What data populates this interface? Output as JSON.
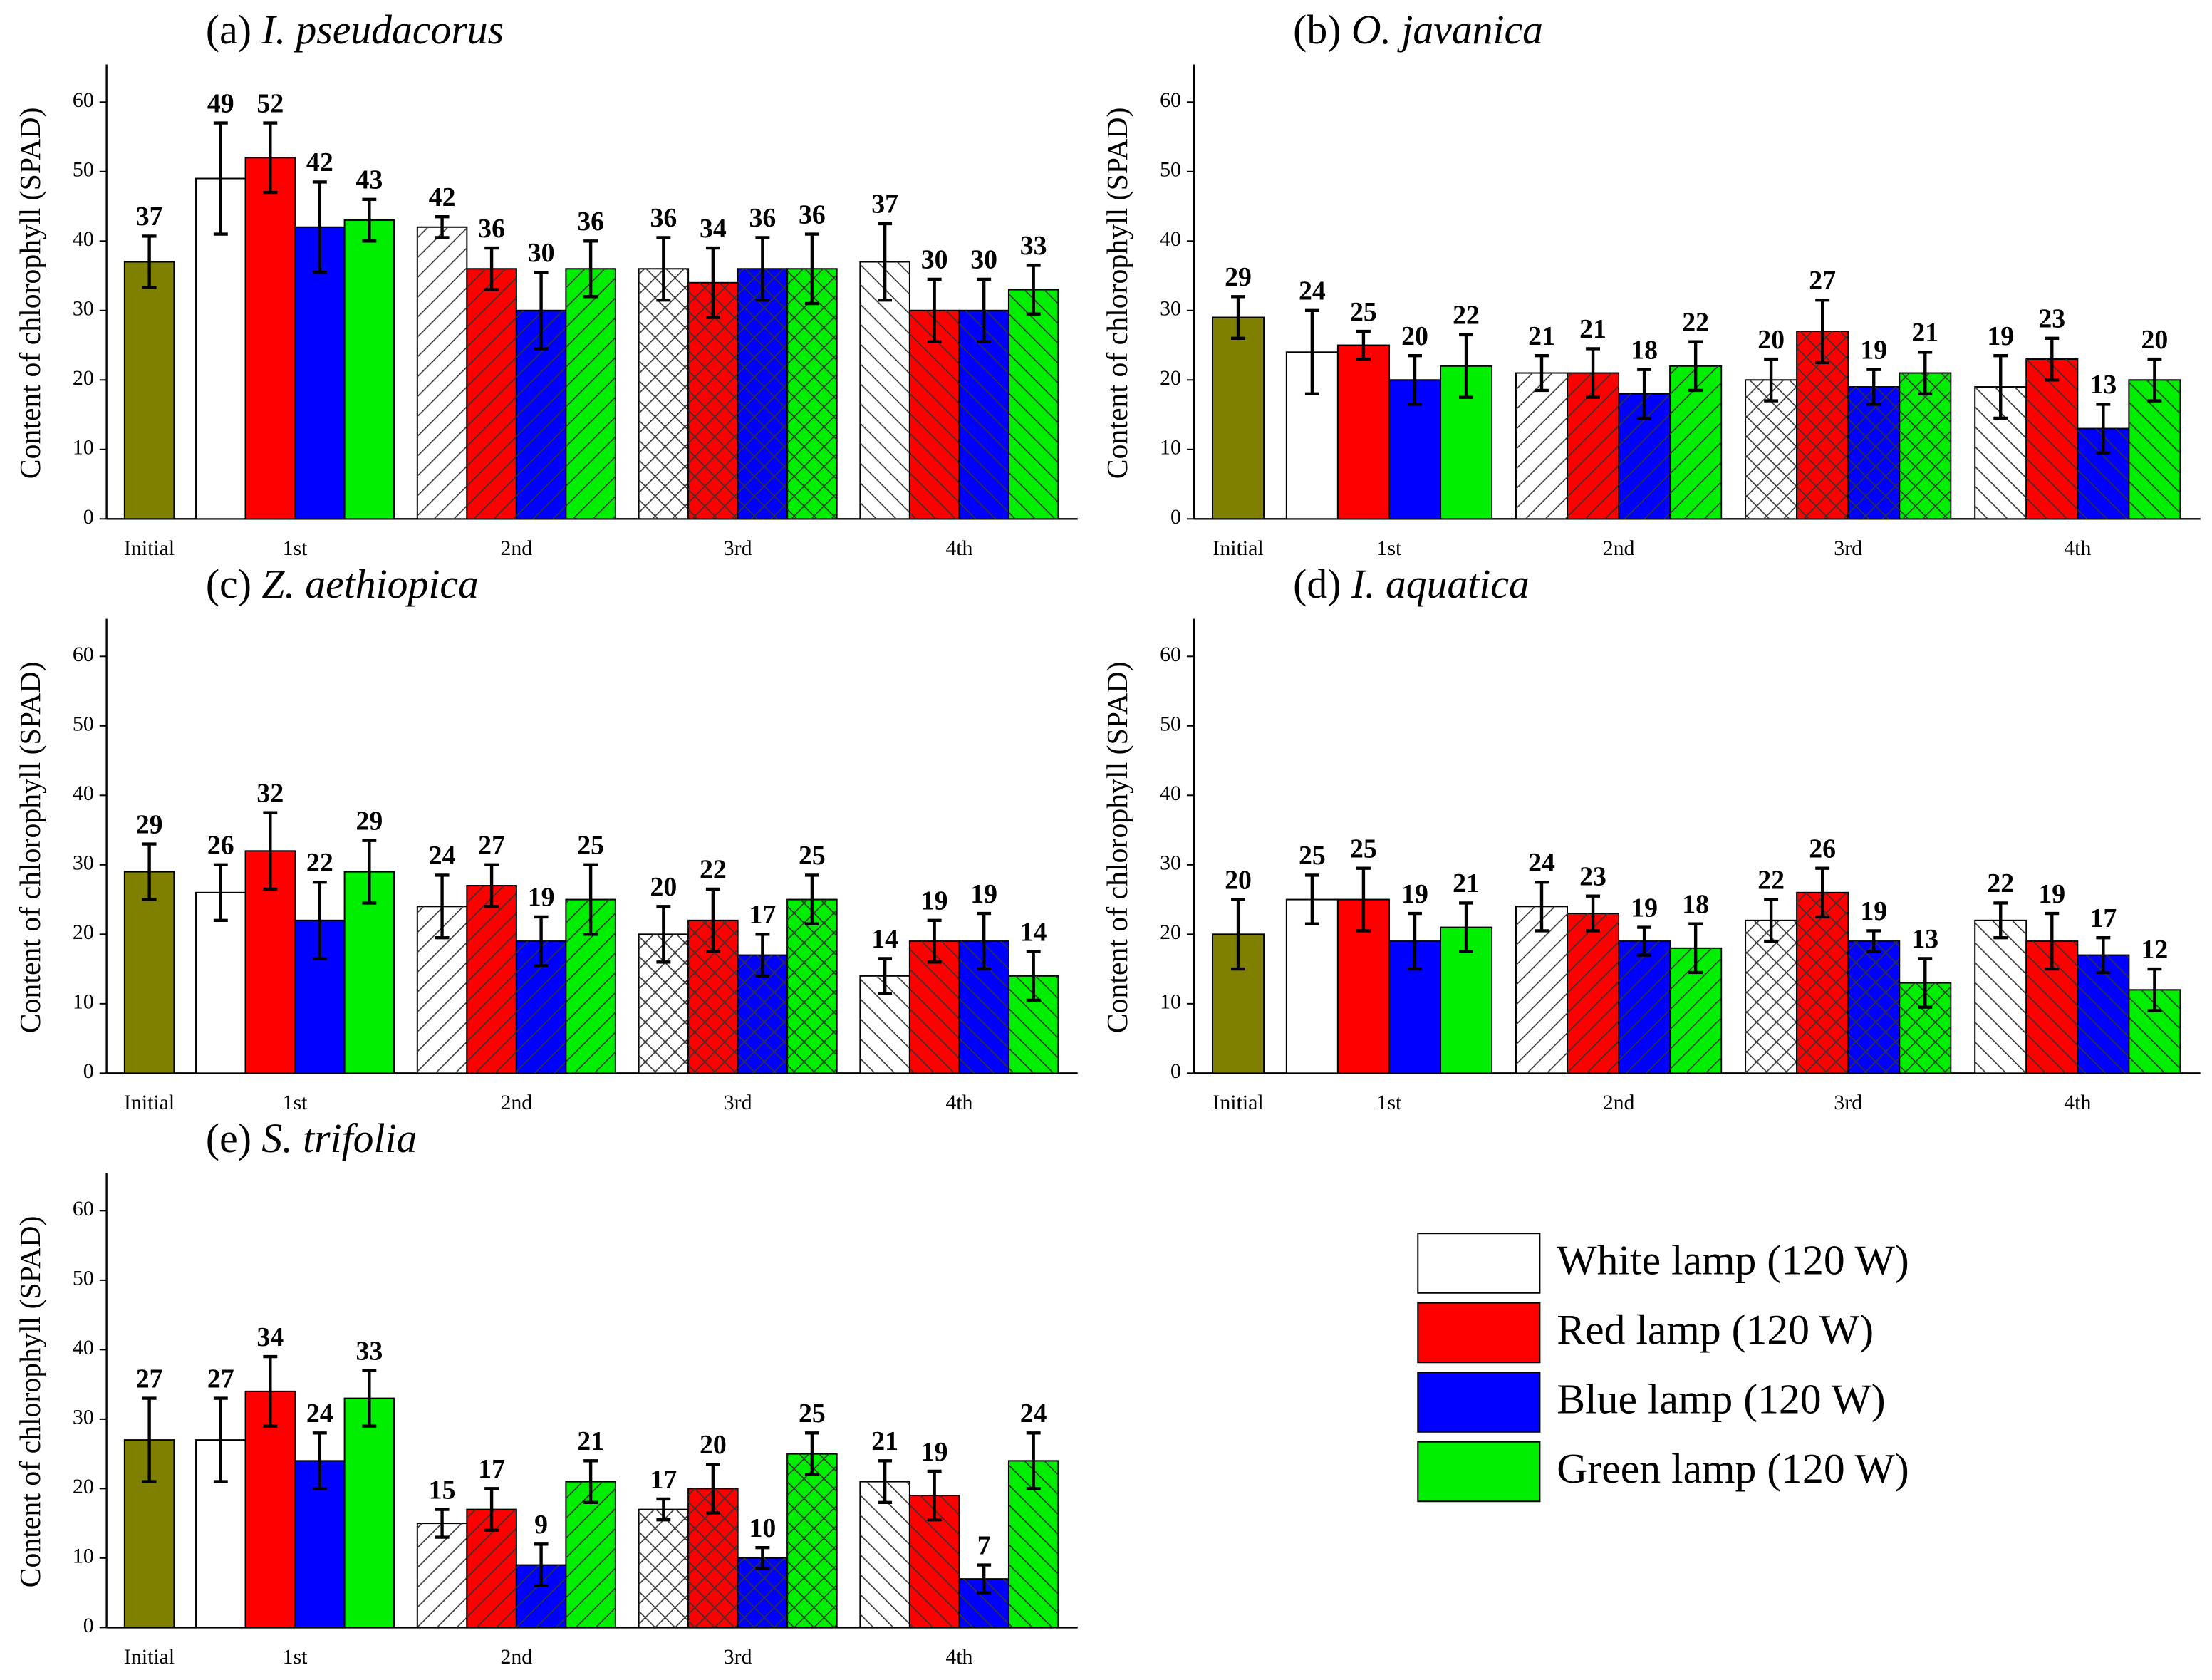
{
  "chart_data": [
    {
      "type": "bar",
      "title_prefix": "(a)",
      "title": "I. pseudacorus",
      "ylabel": "Content of chlorophyll (SPAD)",
      "categories": [
        "Initial",
        "1st",
        "2nd",
        "3rd",
        "4th"
      ],
      "hatches": [
        null,
        null,
        "/",
        "x",
        "\\"
      ],
      "ylim": [
        0,
        65
      ],
      "yticks": [
        0,
        10,
        20,
        30,
        40,
        50,
        60
      ],
      "series": [
        {
          "color": "#808000",
          "values": [
            37,
            null,
            null,
            null,
            null
          ],
          "errors": [
            3.7,
            null,
            null,
            null,
            null
          ]
        },
        {
          "color": "#ffffff",
          "values": [
            null,
            49,
            42,
            36,
            37
          ],
          "errors": [
            null,
            8,
            1.5,
            4.5,
            5.5
          ]
        },
        {
          "color": "#ff0000",
          "values": [
            null,
            52,
            36,
            34,
            30
          ],
          "errors": [
            null,
            5,
            3,
            5,
            4.5
          ]
        },
        {
          "color": "#0000ff",
          "values": [
            null,
            42,
            30,
            36,
            30
          ],
          "errors": [
            null,
            6.5,
            5.5,
            4.5,
            4.5
          ]
        },
        {
          "color": "#00ee00",
          "values": [
            null,
            43,
            36,
            36,
            33
          ],
          "errors": [
            null,
            3,
            4,
            5,
            3.5
          ]
        }
      ]
    },
    {
      "type": "bar",
      "title_prefix": "(b)",
      "title": "O. javanica",
      "ylabel": "Content of chlorophyll (SPAD)",
      "categories": [
        "Initial",
        "1st",
        "2nd",
        "3rd",
        "4th"
      ],
      "hatches": [
        null,
        null,
        "/",
        "x",
        "\\"
      ],
      "ylim": [
        0,
        65
      ],
      "yticks": [
        0,
        10,
        20,
        30,
        40,
        50,
        60
      ],
      "series": [
        {
          "color": "#808000",
          "values": [
            29,
            null,
            null,
            null,
            null
          ],
          "errors": [
            3,
            null,
            null,
            null,
            null
          ]
        },
        {
          "color": "#ffffff",
          "values": [
            null,
            24,
            21,
            20,
            19
          ],
          "errors": [
            null,
            6,
            2.5,
            3,
            4.5
          ]
        },
        {
          "color": "#ff0000",
          "values": [
            null,
            25,
            21,
            27,
            23
          ],
          "errors": [
            null,
            2,
            3.5,
            4.5,
            3
          ]
        },
        {
          "color": "#0000ff",
          "values": [
            null,
            20,
            18,
            19,
            13
          ],
          "errors": [
            null,
            3.5,
            3.5,
            2.5,
            3.5
          ]
        },
        {
          "color": "#00ee00",
          "values": [
            null,
            22,
            22,
            21,
            20
          ],
          "errors": [
            null,
            4.5,
            3.5,
            3,
            3
          ]
        }
      ]
    },
    {
      "type": "bar",
      "title_prefix": "(c)",
      "title": "Z. aethiopica",
      "ylabel": "Content of chlorophyll (SPAD)",
      "categories": [
        "Initial",
        "1st",
        "2nd",
        "3rd",
        "4th"
      ],
      "hatches": [
        null,
        null,
        "/",
        "x",
        "\\"
      ],
      "ylim": [
        0,
        65
      ],
      "yticks": [
        0,
        10,
        20,
        30,
        40,
        50,
        60
      ],
      "series": [
        {
          "color": "#808000",
          "values": [
            29,
            null,
            null,
            null,
            null
          ],
          "errors": [
            4,
            null,
            null,
            null,
            null
          ]
        },
        {
          "color": "#ffffff",
          "values": [
            null,
            26,
            24,
            20,
            14
          ],
          "errors": [
            null,
            4,
            4.5,
            4,
            2.5
          ]
        },
        {
          "color": "#ff0000",
          "values": [
            null,
            32,
            27,
            22,
            19
          ],
          "errors": [
            null,
            5.5,
            3,
            4.5,
            3
          ]
        },
        {
          "color": "#0000ff",
          "values": [
            null,
            22,
            19,
            17,
            19
          ],
          "errors": [
            null,
            5.5,
            3.5,
            3,
            4
          ]
        },
        {
          "color": "#00ee00",
          "values": [
            null,
            29,
            25,
            25,
            14
          ],
          "errors": [
            null,
            4.5,
            5,
            3.5,
            3.5
          ]
        }
      ]
    },
    {
      "type": "bar",
      "title_prefix": "(d)",
      "title": "I. aquatica",
      "ylabel": "Content of chlorophyll (SPAD)",
      "categories": [
        "Initial",
        "1st",
        "2nd",
        "3rd",
        "4th"
      ],
      "hatches": [
        null,
        null,
        "/",
        "x",
        "\\"
      ],
      "ylim": [
        0,
        65
      ],
      "yticks": [
        0,
        10,
        20,
        30,
        40,
        50,
        60
      ],
      "series": [
        {
          "color": "#808000",
          "values": [
            20,
            null,
            null,
            null,
            null
          ],
          "errors": [
            5,
            null,
            null,
            null,
            null
          ]
        },
        {
          "color": "#ffffff",
          "values": [
            null,
            25,
            24,
            22,
            22
          ],
          "errors": [
            null,
            3.5,
            3.5,
            3,
            2.5
          ]
        },
        {
          "color": "#ff0000",
          "values": [
            null,
            25,
            23,
            26,
            19
          ],
          "errors": [
            null,
            4.5,
            2.5,
            3.5,
            4
          ]
        },
        {
          "color": "#0000ff",
          "values": [
            null,
            19,
            19,
            19,
            17
          ],
          "errors": [
            null,
            4,
            2,
            1.5,
            2.5
          ]
        },
        {
          "color": "#00ee00",
          "values": [
            null,
            21,
            18,
            13,
            12
          ],
          "errors": [
            null,
            3.5,
            3.5,
            3.5,
            3
          ]
        }
      ]
    },
    {
      "type": "bar",
      "title_prefix": "(e)",
      "title": "S. trifolia",
      "ylabel": "Content of chlorophyll (SPAD)",
      "categories": [
        "Initial",
        "1st",
        "2nd",
        "3rd",
        "4th"
      ],
      "hatches": [
        null,
        null,
        "/",
        "x",
        "\\"
      ],
      "ylim": [
        0,
        65
      ],
      "yticks": [
        0,
        10,
        20,
        30,
        40,
        50,
        60
      ],
      "series": [
        {
          "color": "#808000",
          "values": [
            27,
            null,
            null,
            null,
            null
          ],
          "errors": [
            6,
            null,
            null,
            null,
            null
          ]
        },
        {
          "color": "#ffffff",
          "values": [
            null,
            27,
            15,
            17,
            21
          ],
          "errors": [
            null,
            6,
            2,
            1.5,
            3
          ]
        },
        {
          "color": "#ff0000",
          "values": [
            null,
            34,
            17,
            20,
            19
          ],
          "errors": [
            null,
            5,
            3,
            3.5,
            3.5
          ]
        },
        {
          "color": "#0000ff",
          "values": [
            null,
            24,
            9,
            10,
            7
          ],
          "errors": [
            null,
            4,
            3,
            1.5,
            2
          ]
        },
        {
          "color": "#00ee00",
          "values": [
            null,
            33,
            21,
            25,
            24
          ],
          "errors": [
            null,
            4,
            3,
            3,
            4
          ]
        }
      ]
    }
  ],
  "legend": [
    {
      "name": "White lamp (120 W)",
      "color": "#ffffff"
    },
    {
      "name": "Red lamp (120 W)",
      "color": "#ff0000"
    },
    {
      "name": "Blue lamp (120 W)",
      "color": "#0000ff"
    },
    {
      "name": "Green lamp (120 W)",
      "color": "#00ee00"
    }
  ]
}
